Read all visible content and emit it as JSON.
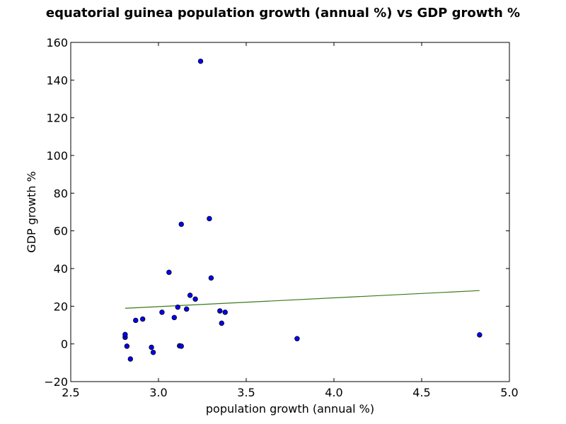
{
  "chart_data": {
    "type": "scatter",
    "title": "equatorial guinea population growth (annual %) vs GDP growth %",
    "xlabel": "population growth (annual %)",
    "ylabel": "GDP growth %",
    "xlim": [
      2.5,
      5.0
    ],
    "ylim": [
      -20,
      160
    ],
    "x_ticks": [
      "2.5",
      "3.0",
      "3.5",
      "4.0",
      "4.5",
      "5.0"
    ],
    "y_ticks": [
      "−20",
      "0",
      "20",
      "40",
      "60",
      "80",
      "100",
      "120",
      "140",
      "160"
    ],
    "grid": false,
    "legend": "none",
    "colors": {
      "points": "#0000ff",
      "point_edge": "#000000",
      "trend_line": "#3a7a1a",
      "axes": "#000000",
      "background": "#ffffff"
    },
    "series": [
      {
        "kind": "points",
        "x": [
          2.81,
          2.81,
          2.82,
          2.84,
          2.87,
          2.91,
          2.96,
          2.97,
          3.02,
          3.06,
          3.09,
          3.11,
          3.12,
          3.13,
          3.13,
          3.16,
          3.18,
          3.21,
          3.24,
          3.29,
          3.3,
          3.35,
          3.36,
          3.38,
          3.79,
          4.83
        ],
        "y": [
          3.5,
          5.0,
          -1.2,
          -8.0,
          12.5,
          13.2,
          -1.8,
          -4.5,
          16.8,
          38.0,
          14.0,
          19.5,
          -1.0,
          -1.2,
          63.5,
          18.5,
          25.8,
          23.8,
          150.0,
          66.5,
          35.0,
          17.5,
          11.0,
          16.8,
          2.8,
          4.8
        ]
      },
      {
        "kind": "trend",
        "x": [
          2.81,
          4.83
        ],
        "y": [
          18.9,
          28.3
        ]
      }
    ]
  }
}
